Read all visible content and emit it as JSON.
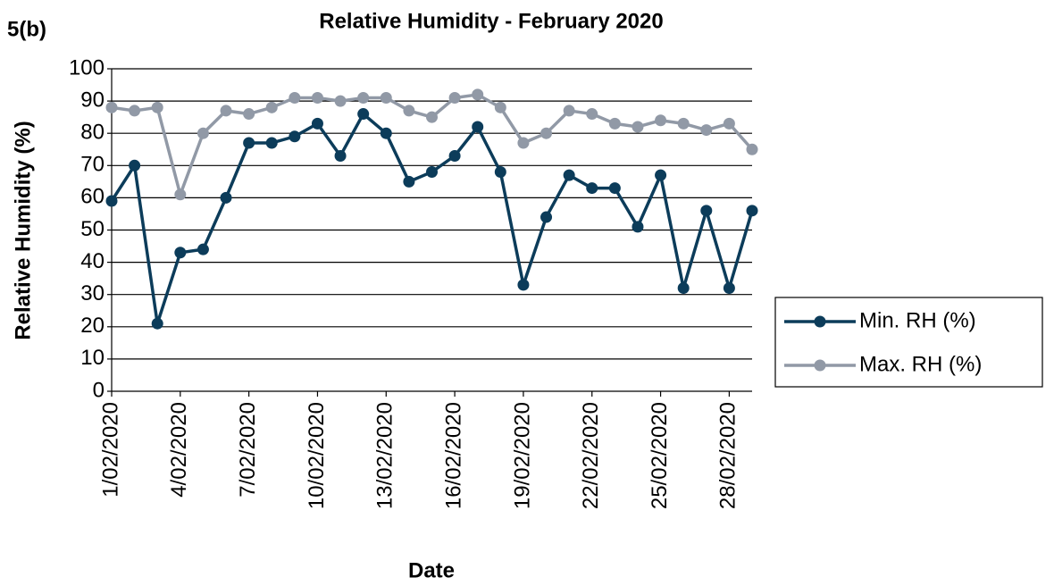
{
  "chart_data": {
    "type": "line",
    "panel_label": "5(b)",
    "title": "Relative Humidity - February 2020",
    "x_label": "Date",
    "y_label": "Relative Humidity (%)",
    "categories": [
      "1/02/2020",
      null,
      null,
      "4/02/2020",
      null,
      null,
      "7/02/2020",
      null,
      null,
      "10/02/2020",
      null,
      null,
      "13/02/2020",
      null,
      null,
      "16/02/2020",
      null,
      null,
      "19/02/2020",
      null,
      null,
      "22/02/2020",
      null,
      null,
      "25/02/2020",
      null,
      null,
      "28/02/2020",
      null
    ],
    "series": [
      {
        "name": "Min. RH (%)",
        "color": "#0c3c5a",
        "values": [
          59,
          70,
          21,
          43,
          44,
          60,
          77,
          77,
          79,
          83,
          73,
          86,
          80,
          65,
          68,
          73,
          82,
          68,
          33,
          54,
          67,
          63,
          63,
          51,
          67,
          32,
          56,
          32,
          56
        ]
      },
      {
        "name": "Max. RH (%)",
        "color": "#9199a6",
        "values": [
          88,
          87,
          88,
          61,
          80,
          87,
          86,
          88,
          91,
          91,
          90,
          91,
          91,
          87,
          85,
          91,
          92,
          88,
          77,
          80,
          87,
          86,
          83,
          82,
          84,
          83,
          81,
          83,
          75
        ]
      }
    ],
    "ylim": [
      0,
      100
    ],
    "yticks": [
      0,
      10,
      20,
      30,
      40,
      50,
      60,
      70,
      80,
      90,
      100
    ],
    "grid": true,
    "legend": "right"
  }
}
